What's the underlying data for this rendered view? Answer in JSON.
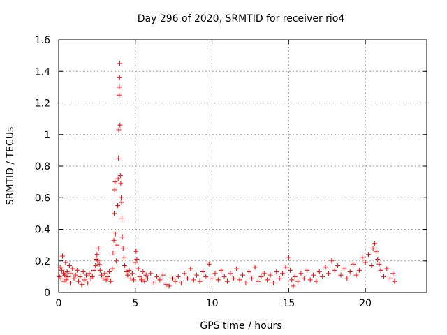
{
  "chart_data": {
    "type": "scatter",
    "title": "Day 296 of 2020, SRMTID for receiver rio4",
    "xlabel": "GPS time / hours",
    "ylabel": "SRMTID / TECUs",
    "xlim": [
      0,
      24
    ],
    "ylim": [
      0,
      1.6
    ],
    "x_ticks": [
      0,
      5,
      10,
      15,
      20
    ],
    "x_tick_labels": [
      "0",
      "5",
      "10",
      "15",
      "20"
    ],
    "y_ticks": [
      0,
      0.2,
      0.4,
      0.6,
      0.8,
      1.0,
      1.2,
      1.4,
      1.6
    ],
    "y_tick_labels": [
      "0",
      "0.2",
      "0.4",
      "0.6",
      "0.8",
      "1",
      "1.2",
      "1.4",
      "1.6"
    ],
    "grid": true,
    "marker": "+",
    "color": "#ff0000",
    "series": [
      {
        "name": "SRMTID",
        "points": [
          [
            0.05,
            0.1
          ],
          [
            0.1,
            0.16
          ],
          [
            0.15,
            0.09
          ],
          [
            0.2,
            0.14
          ],
          [
            0.25,
            0.23
          ],
          [
            0.3,
            0.12
          ],
          [
            0.35,
            0.07
          ],
          [
            0.4,
            0.11
          ],
          [
            0.45,
            0.19
          ],
          [
            0.5,
            0.08
          ],
          [
            0.55,
            0.13
          ],
          [
            0.6,
            0.1
          ],
          [
            0.7,
            0.17
          ],
          [
            0.75,
            0.06
          ],
          [
            0.8,
            0.12
          ],
          [
            0.9,
            0.15
          ],
          [
            1.0,
            0.09
          ],
          [
            1.1,
            0.11
          ],
          [
            1.2,
            0.14
          ],
          [
            1.3,
            0.07
          ],
          [
            1.4,
            0.1
          ],
          [
            1.5,
            0.05
          ],
          [
            1.6,
            0.13
          ],
          [
            1.7,
            0.08
          ],
          [
            1.8,
            0.11
          ],
          [
            1.9,
            0.06
          ],
          [
            2.0,
            0.12
          ],
          [
            2.1,
            0.09
          ],
          [
            2.2,
            0.1
          ],
          [
            2.3,
            0.14
          ],
          [
            2.4,
            0.17
          ],
          [
            2.45,
            0.21
          ],
          [
            2.5,
            0.24
          ],
          [
            2.55,
            0.2
          ],
          [
            2.6,
            0.28
          ],
          [
            2.65,
            0.18
          ],
          [
            2.7,
            0.14
          ],
          [
            2.8,
            0.11
          ],
          [
            2.9,
            0.09
          ],
          [
            3.0,
            0.12
          ],
          [
            3.1,
            0.08
          ],
          [
            3.2,
            0.1
          ],
          [
            3.3,
            0.13
          ],
          [
            3.4,
            0.07
          ],
          [
            3.5,
            0.15
          ],
          [
            3.55,
            0.25
          ],
          [
            3.6,
            0.33
          ],
          [
            3.62,
            0.5
          ],
          [
            3.65,
            0.65
          ],
          [
            3.68,
            0.7
          ],
          [
            3.7,
            0.37
          ],
          [
            3.75,
            0.2
          ],
          [
            3.8,
            0.3
          ],
          [
            3.85,
            0.55
          ],
          [
            3.88,
            0.72
          ],
          [
            3.9,
            0.85
          ],
          [
            3.92,
            1.03
          ],
          [
            3.95,
            1.25
          ],
          [
            3.96,
            1.3
          ],
          [
            3.97,
            1.36
          ],
          [
            3.98,
            1.45
          ],
          [
            4.0,
            1.06
          ],
          [
            4.02,
            0.74
          ],
          [
            4.05,
            0.69
          ],
          [
            4.08,
            0.6
          ],
          [
            4.1,
            0.57
          ],
          [
            4.12,
            0.47
          ],
          [
            4.15,
            0.35
          ],
          [
            4.2,
            0.28
          ],
          [
            4.25,
            0.22
          ],
          [
            4.3,
            0.17
          ],
          [
            4.4,
            0.13
          ],
          [
            4.5,
            0.11
          ],
          [
            4.6,
            0.14
          ],
          [
            4.7,
            0.09
          ],
          [
            4.8,
            0.12
          ],
          [
            4.9,
            0.08
          ],
          [
            5.0,
            0.19
          ],
          [
            5.05,
            0.26
          ],
          [
            5.1,
            0.21
          ],
          [
            5.2,
            0.15
          ],
          [
            5.3,
            0.1
          ],
          [
            5.4,
            0.08
          ],
          [
            5.5,
            0.13
          ],
          [
            5.6,
            0.07
          ],
          [
            5.7,
            0.11
          ],
          [
            5.8,
            0.09
          ],
          [
            6.0,
            0.12
          ],
          [
            6.2,
            0.06
          ],
          [
            6.4,
            0.1
          ],
          [
            6.6,
            0.08
          ],
          [
            6.8,
            0.11
          ],
          [
            7.0,
            0.05
          ],
          [
            7.2,
            0.04
          ],
          [
            7.4,
            0.09
          ],
          [
            7.6,
            0.07
          ],
          [
            7.8,
            0.1
          ],
          [
            8.0,
            0.06
          ],
          [
            8.2,
            0.12
          ],
          [
            8.4,
            0.09
          ],
          [
            8.6,
            0.15
          ],
          [
            8.8,
            0.08
          ],
          [
            9.0,
            0.11
          ],
          [
            9.2,
            0.07
          ],
          [
            9.4,
            0.13
          ],
          [
            9.6,
            0.1
          ],
          [
            9.8,
            0.18
          ],
          [
            10.0,
            0.09
          ],
          [
            10.2,
            0.12
          ],
          [
            10.4,
            0.08
          ],
          [
            10.6,
            0.14
          ],
          [
            10.8,
            0.1
          ],
          [
            11.0,
            0.07
          ],
          [
            11.2,
            0.12
          ],
          [
            11.4,
            0.09
          ],
          [
            11.6,
            0.15
          ],
          [
            11.8,
            0.08
          ],
          [
            12.0,
            0.11
          ],
          [
            12.2,
            0.06
          ],
          [
            12.4,
            0.13
          ],
          [
            12.6,
            0.09
          ],
          [
            12.8,
            0.16
          ],
          [
            13.0,
            0.07
          ],
          [
            13.2,
            0.1
          ],
          [
            13.4,
            0.12
          ],
          [
            13.6,
            0.08
          ],
          [
            13.8,
            0.11
          ],
          [
            14.0,
            0.06
          ],
          [
            14.2,
            0.13
          ],
          [
            14.4,
            0.09
          ],
          [
            14.6,
            0.12
          ],
          [
            14.8,
            0.16
          ],
          [
            15.0,
            0.22
          ],
          [
            15.1,
            0.14
          ],
          [
            15.2,
            0.08
          ],
          [
            15.3,
            0.04
          ],
          [
            15.4,
            0.1
          ],
          [
            15.6,
            0.07
          ],
          [
            15.8,
            0.12
          ],
          [
            16.0,
            0.09
          ],
          [
            16.2,
            0.14
          ],
          [
            16.4,
            0.08
          ],
          [
            16.6,
            0.11
          ],
          [
            16.8,
            0.07
          ],
          [
            17.0,
            0.13
          ],
          [
            17.2,
            0.1
          ],
          [
            17.4,
            0.16
          ],
          [
            17.6,
            0.12
          ],
          [
            17.8,
            0.2
          ],
          [
            18.0,
            0.14
          ],
          [
            18.2,
            0.17
          ],
          [
            18.4,
            0.11
          ],
          [
            18.6,
            0.15
          ],
          [
            18.8,
            0.09
          ],
          [
            19.0,
            0.13
          ],
          [
            19.2,
            0.18
          ],
          [
            19.4,
            0.11
          ],
          [
            19.6,
            0.14
          ],
          [
            19.8,
            0.22
          ],
          [
            20.0,
            0.19
          ],
          [
            20.2,
            0.24
          ],
          [
            20.4,
            0.17
          ],
          [
            20.5,
            0.28
          ],
          [
            20.6,
            0.31
          ],
          [
            20.7,
            0.26
          ],
          [
            20.8,
            0.21
          ],
          [
            20.9,
            0.18
          ],
          [
            21.0,
            0.14
          ],
          [
            21.2,
            0.1
          ],
          [
            21.4,
            0.15
          ],
          [
            21.6,
            0.09
          ],
          [
            21.8,
            0.12
          ],
          [
            21.9,
            0.07
          ]
        ]
      }
    ]
  }
}
